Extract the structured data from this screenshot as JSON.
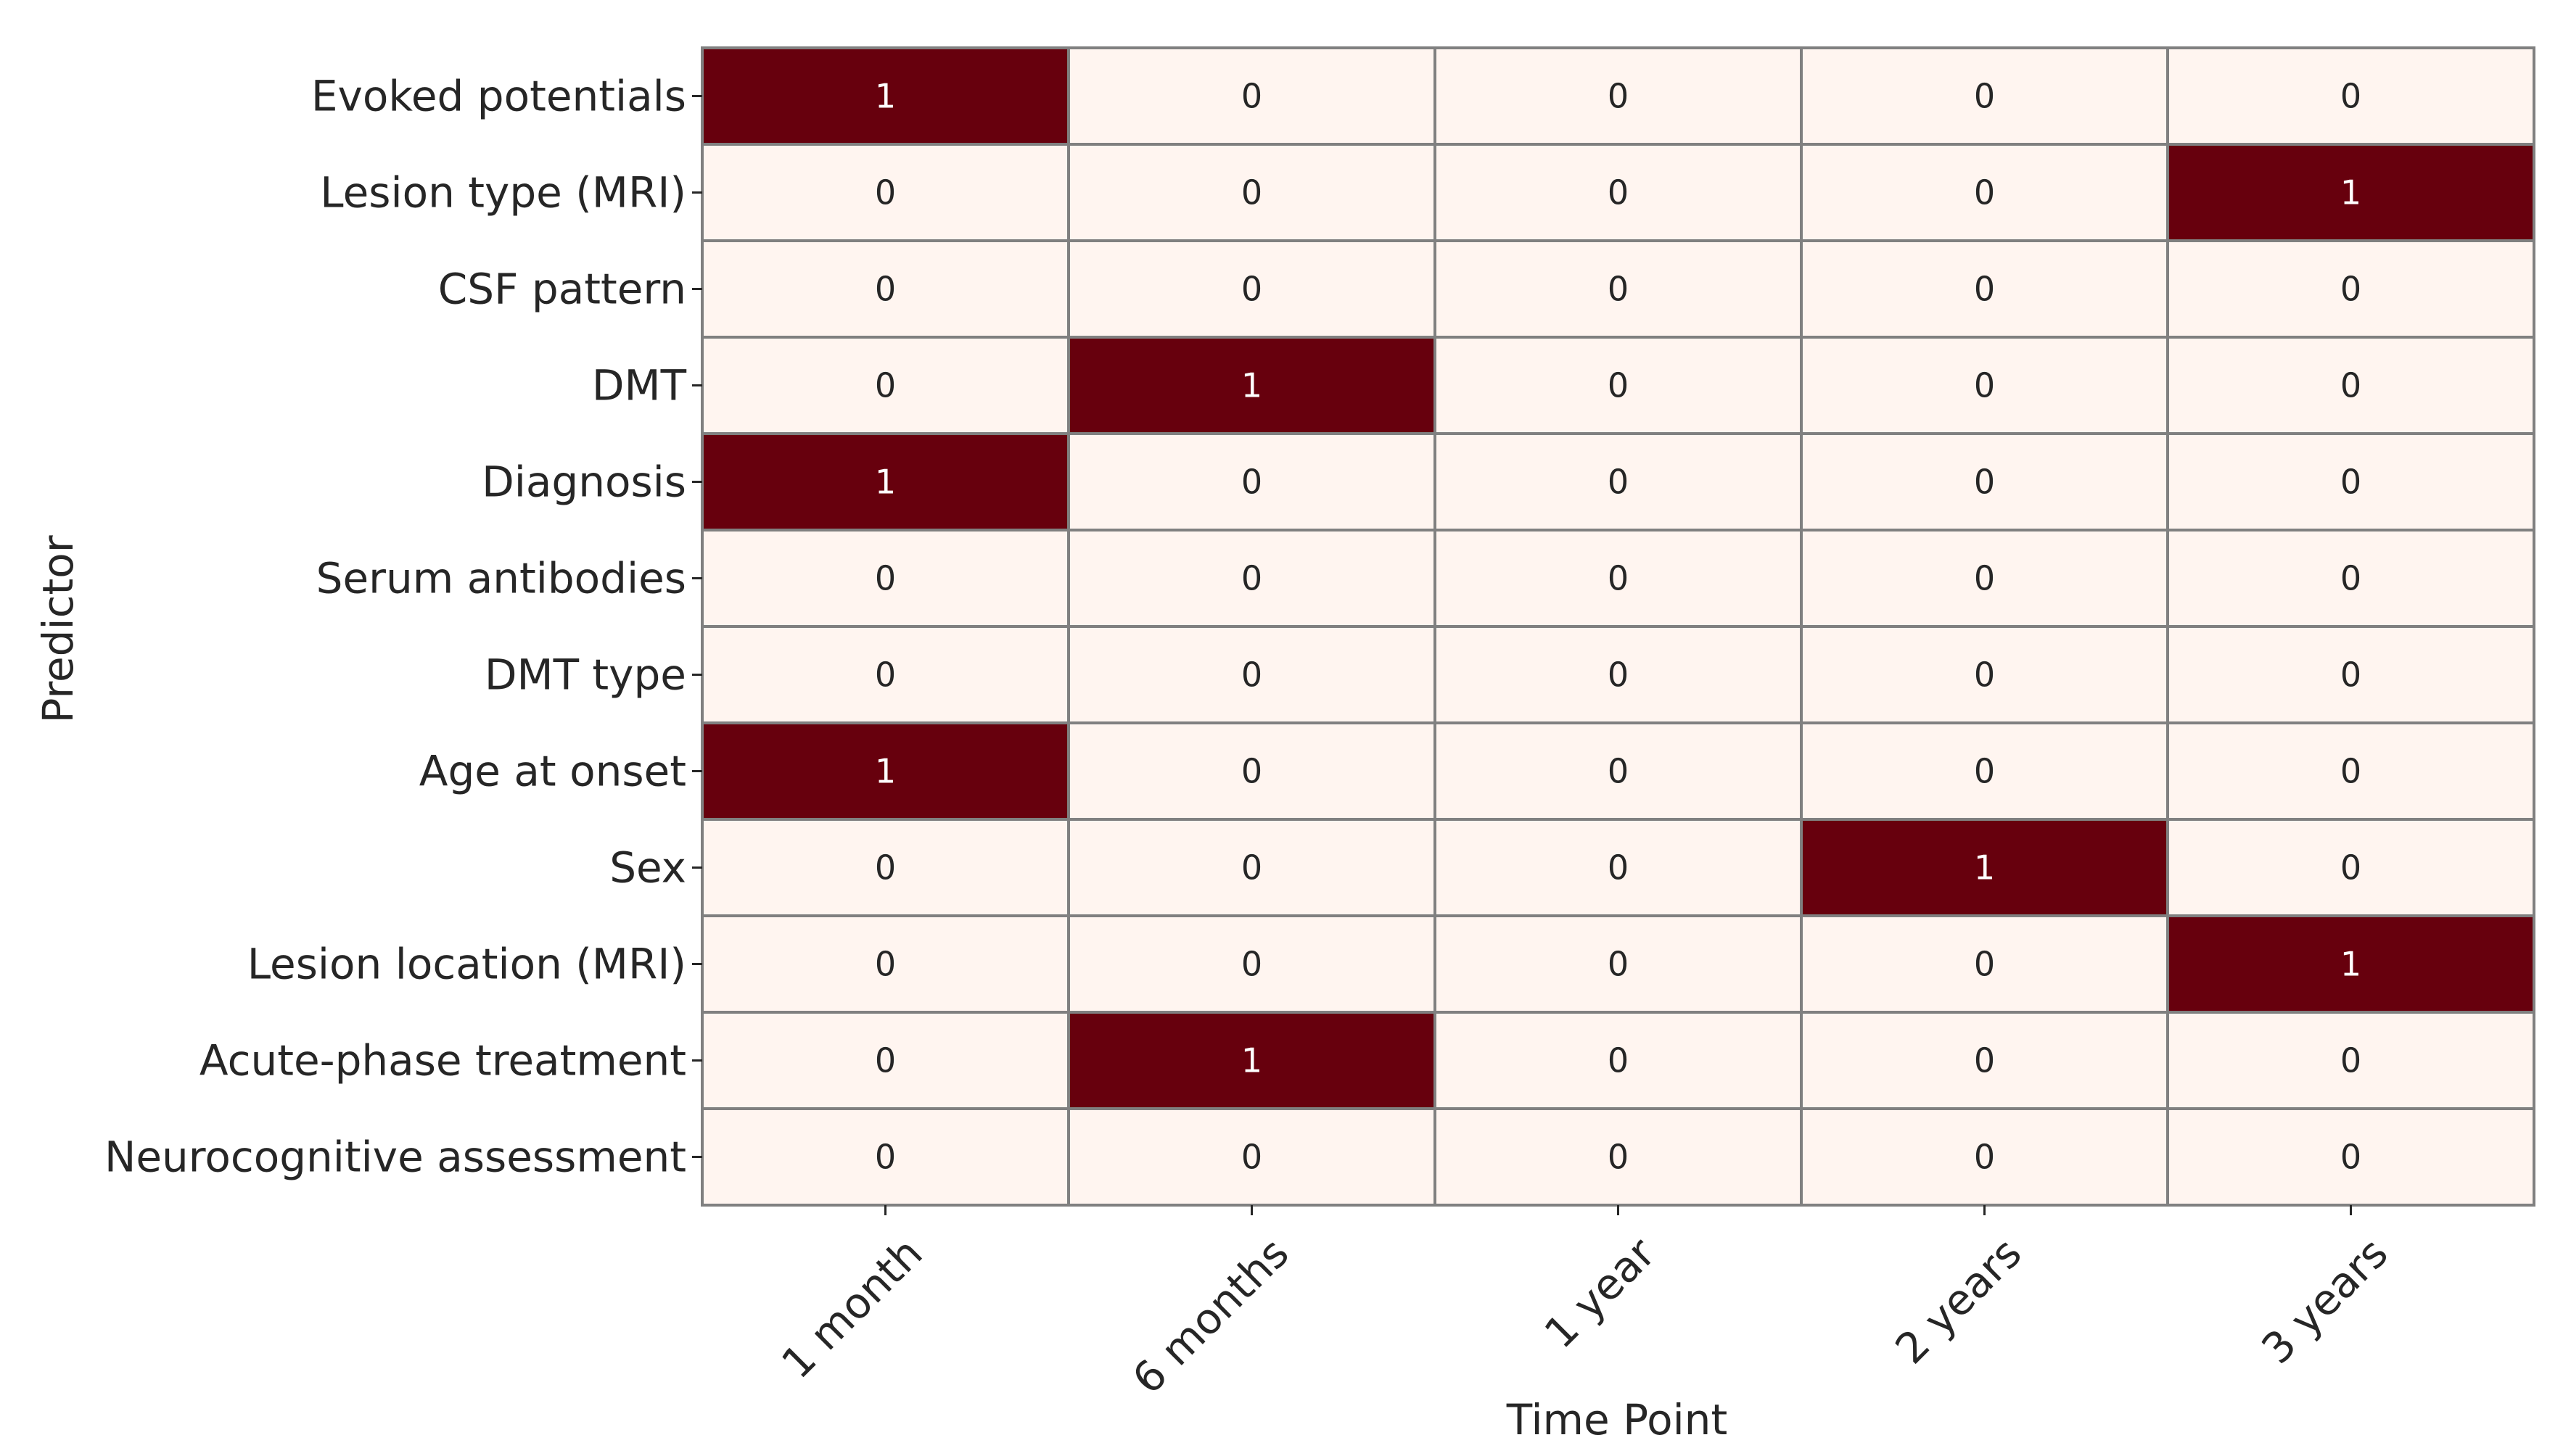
{
  "chart_data": {
    "type": "heatmap",
    "title": "",
    "xlabel": "Time Point",
    "ylabel": "Predictor",
    "x_categories": [
      "1 month",
      "6 months",
      "1 year",
      "2 years",
      "3 years"
    ],
    "y_categories": [
      "Evoked potentials",
      "Lesion type (MRI)",
      "CSF pattern",
      "DMT",
      "Diagnosis",
      "Serum antibodies",
      "DMT type",
      "Age at onset",
      "Sex",
      "Lesion location (MRI)",
      "Acute-phase treatment",
      "Neurocognitive assessment"
    ],
    "values": [
      [
        1,
        0,
        0,
        0,
        0
      ],
      [
        0,
        0,
        0,
        0,
        1
      ],
      [
        0,
        0,
        0,
        0,
        0
      ],
      [
        0,
        1,
        0,
        0,
        0
      ],
      [
        1,
        0,
        0,
        0,
        0
      ],
      [
        0,
        0,
        0,
        0,
        0
      ],
      [
        0,
        0,
        0,
        0,
        0
      ],
      [
        1,
        0,
        0,
        0,
        0
      ],
      [
        0,
        0,
        0,
        1,
        0
      ],
      [
        0,
        0,
        0,
        0,
        1
      ],
      [
        0,
        1,
        0,
        0,
        0
      ],
      [
        0,
        0,
        0,
        0,
        0
      ]
    ],
    "value_range": [
      0,
      1
    ],
    "colors": {
      "low": "#fff5f0",
      "high": "#67000d",
      "grid": "#808080",
      "text_on_low": "#262626",
      "text_on_high": "#ffffff",
      "axis_text": "#262626"
    },
    "annotated": true,
    "colorbar": false,
    "grid": true
  }
}
